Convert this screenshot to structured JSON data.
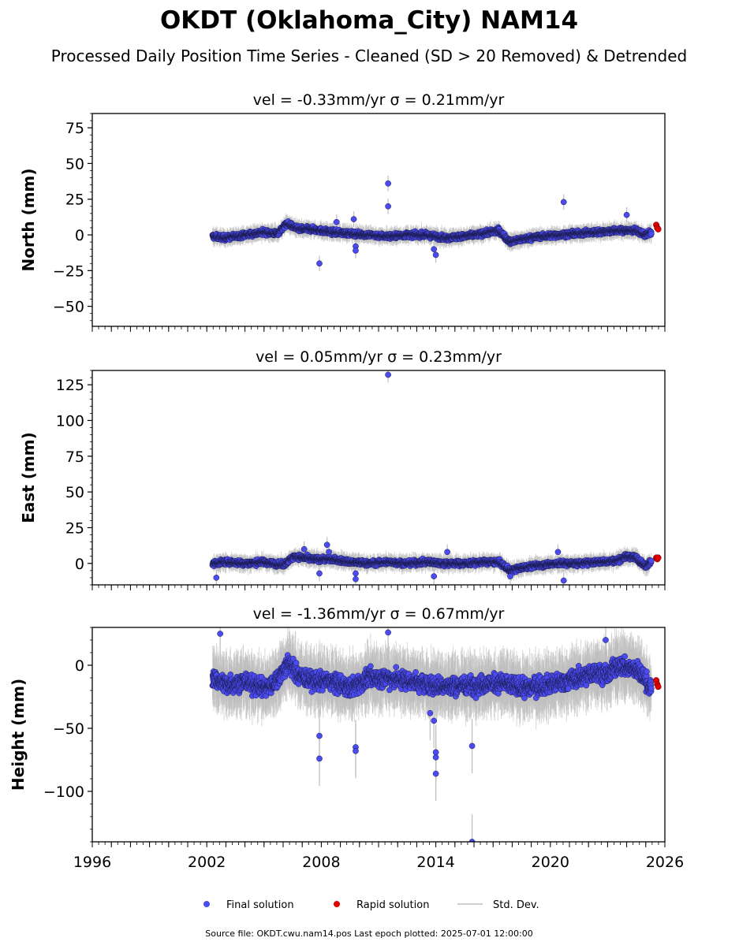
{
  "title": "OKDT (Oklahoma_City) NAM14",
  "subtitle": "Processed Daily Position Time Series - Cleaned (SD > 20 Removed) & Detrended",
  "footer": "Source file: OKDT.cwu.nam14.pos  Last epoch plotted: 2025-07-01 12:00:00",
  "legend": {
    "final": "Final solution",
    "rapid": "Rapid solution",
    "std": "Std. Dev."
  },
  "colors": {
    "final": "#4b4bf2",
    "rapid": "#e00000",
    "std": "#bdbdbd"
  },
  "chart_data": [
    {
      "type": "scatter",
      "title": "vel = -0.33mm/yr   σ = 0.21mm/yr",
      "xlabel": "",
      "ylabel": "North (mm)",
      "xlim": [
        1996,
        2026
      ],
      "ylim": [
        -64,
        85
      ],
      "yticks": [
        75,
        50,
        25,
        0,
        -25,
        -50
      ],
      "ytick_labels": [
        "75",
        "50",
        "25",
        "0",
        "−25",
        "−50"
      ],
      "series": [
        {
          "name": "Final solution",
          "x": [
            2002.3,
            2003.0,
            2004.0,
            2005.0,
            2005.7,
            2006.2,
            2006.8,
            2007.5,
            2008.5,
            2009.5,
            2010.5,
            2011.5,
            2012.5,
            2013.5,
            2014.5,
            2015.5,
            2016.5,
            2017.3,
            2017.9,
            2018.5,
            2019.5,
            2020.5,
            2021.5,
            2022.5,
            2023.5,
            2024.5,
            2025.0,
            2025.3
          ],
          "y": [
            -1,
            -2,
            0,
            2,
            1,
            8,
            4,
            4,
            2,
            1,
            0,
            -1,
            0,
            0,
            -2,
            -1,
            1,
            3,
            -5,
            -3,
            -1,
            0,
            1,
            2,
            3,
            3,
            0,
            2
          ],
          "envelope": 3,
          "outliers": [
            [
              2007.9,
              -20
            ],
            [
              2008.8,
              9
            ],
            [
              2009.7,
              11
            ],
            [
              2009.8,
              -8
            ],
            [
              2009.8,
              -11
            ],
            [
              2011.5,
              36
            ],
            [
              2011.5,
              20
            ],
            [
              2013.9,
              -10
            ],
            [
              2014.0,
              -14
            ],
            [
              2020.7,
              23
            ],
            [
              2024.0,
              14
            ]
          ]
        },
        {
          "name": "Rapid solution",
          "x": [
            2025.55,
            2025.6,
            2025.65
          ],
          "y": [
            7,
            5,
            4
          ]
        }
      ]
    },
    {
      "type": "scatter",
      "title": "vel = 0.05mm/yr   σ = 0.23mm/yr",
      "xlabel": "",
      "ylabel": "East (mm)",
      "xlim": [
        1996,
        2026
      ],
      "ylim": [
        -15,
        135
      ],
      "yticks": [
        125,
        100,
        75,
        50,
        25,
        0
      ],
      "ytick_labels": [
        "125",
        "100",
        "75",
        "50",
        "25",
        "0"
      ],
      "series": [
        {
          "name": "Final solution",
          "x": [
            2002.3,
            2003.0,
            2004.0,
            2005.0,
            2006.0,
            2006.6,
            2007.5,
            2008.5,
            2009.5,
            2010.5,
            2011.5,
            2012.5,
            2013.5,
            2014.5,
            2015.5,
            2016.5,
            2017.3,
            2017.9,
            2018.5,
            2019.5,
            2020.5,
            2021.5,
            2022.5,
            2023.5,
            2024.0,
            2024.5,
            2025.0,
            2025.3
          ],
          "y": [
            0,
            1,
            0,
            1,
            -1,
            5,
            3,
            3,
            1,
            0,
            1,
            0,
            1,
            0,
            0,
            1,
            1,
            -5,
            -3,
            -1,
            0,
            0,
            1,
            2,
            5,
            4,
            -2,
            2
          ],
          "envelope": 3,
          "outliers": [
            [
              2002.5,
              -10
            ],
            [
              2007.1,
              10
            ],
            [
              2007.9,
              -7
            ],
            [
              2008.3,
              13
            ],
            [
              2008.4,
              8
            ],
            [
              2009.8,
              -7
            ],
            [
              2009.8,
              -11
            ],
            [
              2011.5,
              132
            ],
            [
              2013.9,
              -9
            ],
            [
              2014.6,
              8
            ],
            [
              2017.9,
              -9
            ],
            [
              2020.4,
              8
            ],
            [
              2020.7,
              -12
            ]
          ]
        },
        {
          "name": "Rapid solution",
          "x": [
            2025.55,
            2025.6,
            2025.65
          ],
          "y": [
            4,
            3,
            4
          ]
        }
      ]
    },
    {
      "type": "scatter",
      "title": "vel = -1.36mm/yr   σ = 0.67mm/yr",
      "xlabel": "",
      "ylabel": "Height (mm)",
      "xlim": [
        1996,
        2026
      ],
      "ylim": [
        -140,
        30
      ],
      "yticks": [
        0,
        -50,
        -100
      ],
      "ytick_labels": [
        "0",
        "−50",
        "−100"
      ],
      "xticks": [
        1996,
        2002,
        2008,
        2014,
        2020,
        2026
      ],
      "xtick_labels": [
        "1996",
        "2002",
        "2008",
        "2014",
        "2020",
        "2026"
      ],
      "series": [
        {
          "name": "Final solution",
          "x": [
            2002.3,
            2003.0,
            2004.0,
            2005.0,
            2005.5,
            2006.3,
            2006.8,
            2007.5,
            2008.5,
            2009.5,
            2010.5,
            2011.5,
            2012.5,
            2013.5,
            2014.5,
            2015.5,
            2016.5,
            2017.5,
            2018.5,
            2019.5,
            2020.5,
            2021.5,
            2022.5,
            2023.0,
            2023.5,
            2024.0,
            2024.5,
            2025.0,
            2025.3
          ],
          "y": [
            -10,
            -15,
            -13,
            -18,
            -15,
            2,
            -8,
            -12,
            -13,
            -18,
            -10,
            -10,
            -12,
            -15,
            -17,
            -16,
            -15,
            -14,
            -18,
            -16,
            -14,
            -10,
            -5,
            -8,
            0,
            -2,
            -3,
            -12,
            -20
          ],
          "envelope": 12,
          "outliers": [
            [
              2002.7,
              25
            ],
            [
              2007.9,
              -56
            ],
            [
              2007.9,
              -74
            ],
            [
              2009.8,
              -65
            ],
            [
              2009.8,
              -68
            ],
            [
              2011.5,
              26
            ],
            [
              2013.7,
              -38
            ],
            [
              2013.9,
              -44
            ],
            [
              2014.0,
              -69
            ],
            [
              2014.0,
              -73
            ],
            [
              2014.0,
              -86
            ],
            [
              2015.9,
              -64
            ],
            [
              2015.9,
              -140
            ],
            [
              2022.9,
              20
            ]
          ]
        },
        {
          "name": "Rapid solution",
          "x": [
            2025.55,
            2025.6,
            2025.65
          ],
          "y": [
            -12,
            -15,
            -17
          ]
        }
      ]
    }
  ]
}
